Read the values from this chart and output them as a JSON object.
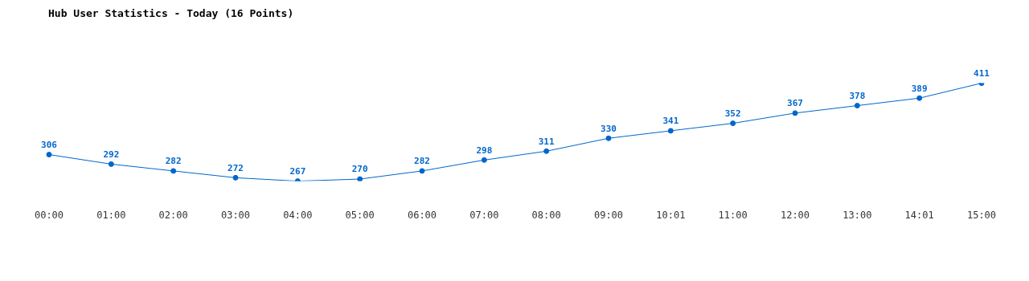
{
  "chart_data": {
    "type": "line",
    "title": "Hub User Statistics - Today (16 Points)",
    "categories": [
      "00:00",
      "01:00",
      "02:00",
      "03:00",
      "04:00",
      "05:00",
      "06:00",
      "07:00",
      "08:00",
      "09:00",
      "10:01",
      "11:00",
      "12:00",
      "13:00",
      "14:01",
      "15:00"
    ],
    "series": [
      {
        "color": "#0066cc",
        "values": [
          306,
          292,
          282,
          272,
          267,
          270,
          282,
          298,
          311,
          330,
          341,
          352,
          367,
          378,
          389,
          411
        ]
      }
    ],
    "data_labels": true,
    "marker": "circle",
    "grid": false,
    "legend": false,
    "tick_labels": "x"
  }
}
